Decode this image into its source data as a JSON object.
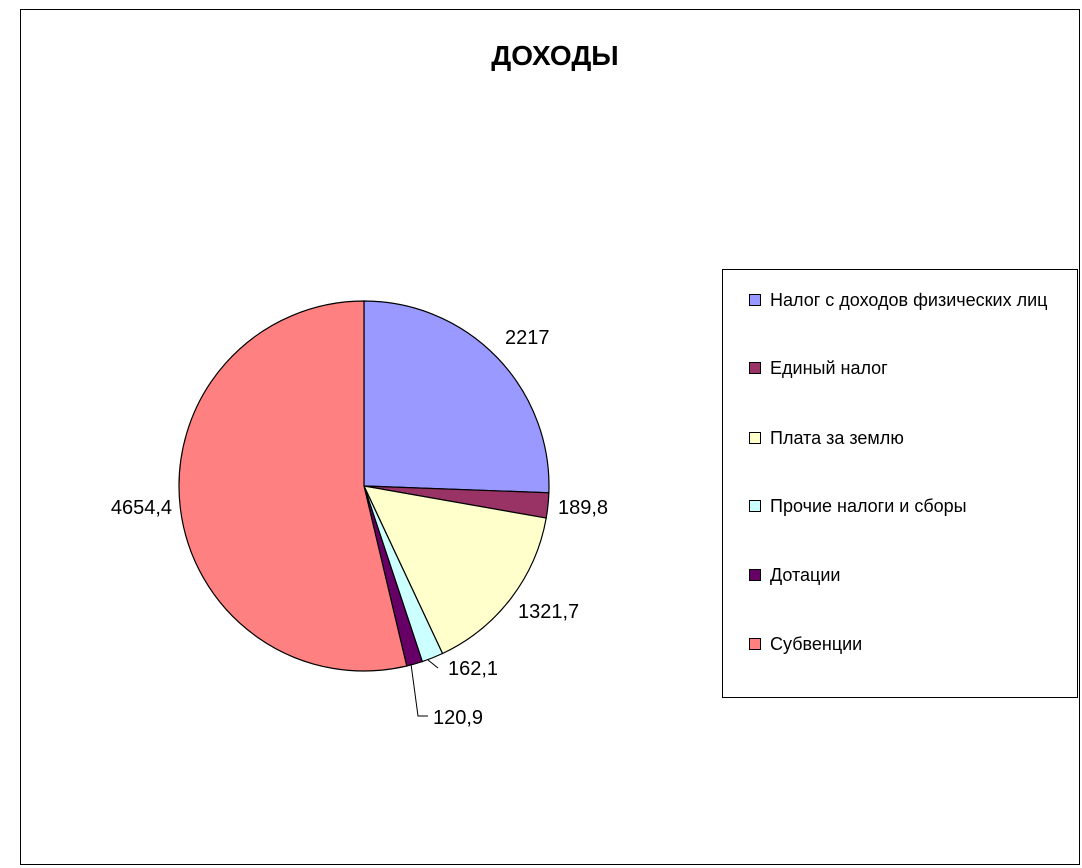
{
  "chart_data": {
    "type": "pie",
    "title": "ДОХОДЫ",
    "categories": [
      "Налог с доходов физических лиц",
      "Единый налог",
      "Плата за землю",
      "Прочие налоги и сборы",
      "Дотации",
      "Субвенции"
    ],
    "values": [
      2217,
      189.8,
      1321.7,
      162.1,
      120.9,
      4654.4
    ],
    "data_labels": [
      "2217",
      "189,8",
      "1321,7",
      "162,1",
      "120,9",
      "4654,4"
    ],
    "colors": [
      "#9999ff",
      "#993366",
      "#ffffcc",
      "#ccffff",
      "#660066",
      "#ff8080"
    ],
    "legend_position": "right",
    "start_angle": "12 o'clock",
    "direction": "clockwise"
  }
}
